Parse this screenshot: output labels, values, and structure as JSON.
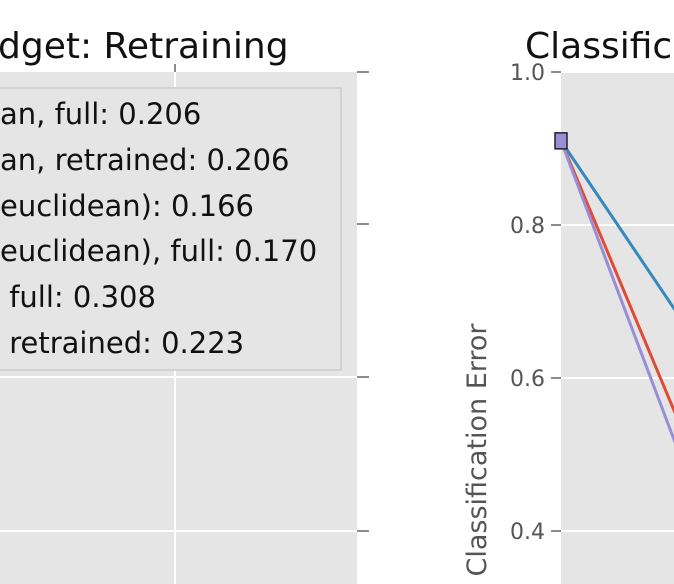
{
  "left_panel": {
    "title": "dget: Retraining",
    "legend": [
      "an, full: 0.206",
      "an, retrained: 0.206",
      "euclidean): 0.166",
      "euclidean), full: 0.170",
      " full: 0.308",
      " retrained: 0.223"
    ]
  },
  "right_panel": {
    "title": "Classific",
    "ylabel": "Classification Error",
    "yticks": [
      "1.0",
      "0.8",
      "0.6",
      "0.4"
    ]
  },
  "colors": {
    "plot_bg": "#e5e5e5",
    "grid": "#ffffff",
    "legend_bg": "#e5e5e5",
    "legend_edge": "#cccccc",
    "series_blue": "#348abd",
    "series_red": "#e24a33",
    "series_purple": "#988ed5"
  },
  "chart_data": {
    "type": "line",
    "ylim": [
      0.4,
      1.0
    ],
    "ylabel": "Classification Error",
    "series": [
      {
        "color": "#348abd",
        "x": [
          0,
          1
        ],
        "y": [
          0.91,
          0.68
        ]
      },
      {
        "color": "#e24a33",
        "x": [
          0,
          1
        ],
        "y": [
          0.91,
          0.54
        ]
      },
      {
        "color": "#988ed5",
        "x": [
          0,
          1
        ],
        "y": [
          0.91,
          0.5
        ]
      }
    ]
  }
}
